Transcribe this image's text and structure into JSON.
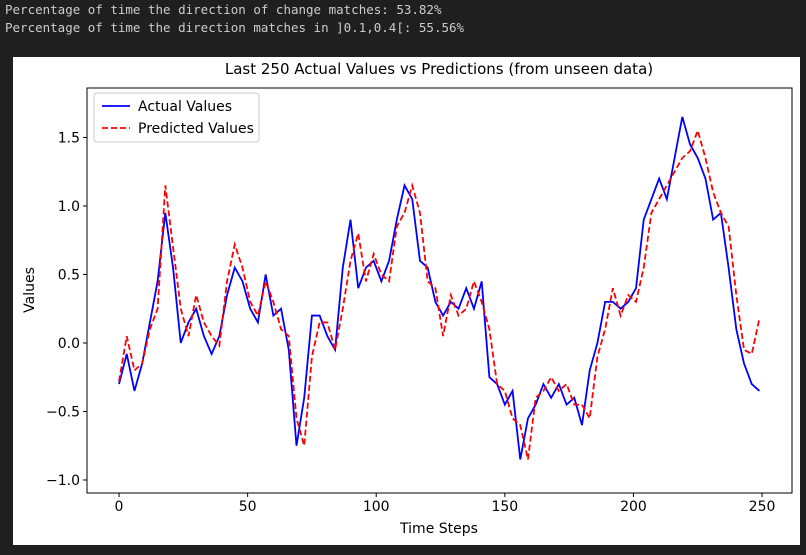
{
  "console": [
    "Percentage of time the direction of change matches: 53.82%",
    "Percentage of time the direction matches in ]0.1,0.4[: 55.56%"
  ],
  "chart_data": {
    "type": "line",
    "title": "Last 250 Actual Values vs Predictions (from unseen data)",
    "x_label": "Time Steps",
    "y_label": "Values",
    "x": [
      0,
      3,
      6,
      9,
      12,
      15,
      18,
      21,
      24,
      27,
      30,
      33,
      36,
      39,
      42,
      45,
      48,
      51,
      54,
      57,
      60,
      63,
      66,
      69,
      72,
      75,
      78,
      81,
      84,
      87,
      90,
      93,
      96,
      99,
      102,
      105,
      108,
      111,
      114,
      117,
      120,
      123,
      126,
      129,
      132,
      135,
      138,
      141,
      144,
      147,
      150,
      153,
      156,
      159,
      162,
      165,
      168,
      171,
      174,
      177,
      180,
      183,
      186,
      189,
      192,
      195,
      198,
      201,
      204,
      207,
      210,
      213,
      216,
      219,
      222,
      225,
      228,
      231,
      234,
      237,
      240,
      243,
      246,
      249
    ],
    "series": [
      {
        "name": "Actual Values",
        "color": "#0000ff",
        "dash": false,
        "values": [
          -0.3,
          -0.08,
          -0.35,
          -0.15,
          0.15,
          0.45,
          0.95,
          0.55,
          0.0,
          0.15,
          0.25,
          0.05,
          -0.08,
          0.05,
          0.35,
          0.55,
          0.45,
          0.25,
          0.15,
          0.5,
          0.2,
          0.25,
          -0.05,
          -0.75,
          -0.4,
          0.2,
          0.2,
          0.05,
          -0.05,
          0.55,
          0.9,
          0.4,
          0.55,
          0.6,
          0.45,
          0.6,
          0.9,
          1.15,
          1.05,
          0.6,
          0.55,
          0.3,
          0.2,
          0.3,
          0.25,
          0.4,
          0.25,
          0.45,
          -0.25,
          -0.3,
          -0.45,
          -0.35,
          -0.85,
          -0.55,
          -0.45,
          -0.3,
          -0.4,
          -0.3,
          -0.45,
          -0.4,
          -0.6,
          -0.2,
          0.0,
          0.3,
          0.3,
          0.25,
          0.3,
          0.4,
          0.9,
          1.05,
          1.2,
          1.05,
          1.35,
          1.65,
          1.45,
          1.35,
          1.2,
          0.9,
          0.95,
          0.55,
          0.1,
          -0.15,
          -0.3,
          -0.35
        ]
      },
      {
        "name": "Predicted Values",
        "color": "#ff0000",
        "dash": true,
        "values": [
          -0.28,
          0.05,
          -0.2,
          -0.15,
          0.1,
          0.25,
          1.15,
          0.7,
          0.25,
          0.05,
          0.35,
          0.15,
          0.05,
          -0.02,
          0.45,
          0.72,
          0.55,
          0.3,
          0.2,
          0.45,
          0.3,
          0.1,
          0.05,
          -0.55,
          -0.75,
          -0.1,
          0.15,
          0.15,
          -0.05,
          0.25,
          0.6,
          0.8,
          0.45,
          0.65,
          0.5,
          0.45,
          0.85,
          0.95,
          1.15,
          0.95,
          0.45,
          0.4,
          0.05,
          0.35,
          0.2,
          0.25,
          0.45,
          0.3,
          0.1,
          -0.3,
          -0.35,
          -0.55,
          -0.6,
          -0.85,
          -0.4,
          -0.35,
          -0.25,
          -0.35,
          -0.3,
          -0.45,
          -0.45,
          -0.55,
          -0.1,
          0.1,
          0.4,
          0.2,
          0.35,
          0.3,
          0.55,
          0.95,
          1.05,
          1.15,
          1.25,
          1.35,
          1.4,
          1.55,
          1.35,
          1.1,
          0.95,
          0.85,
          0.35,
          -0.05,
          -0.08,
          0.18
        ]
      }
    ],
    "xlim": [
      -12.45,
      261.65
    ],
    "ylim": [
      -1.095,
      1.861
    ],
    "xticks": [
      0,
      50,
      100,
      150,
      200,
      250
    ],
    "yticks": [
      {
        "value": -1.0,
        "label": "−1.0"
      },
      {
        "value": -0.5,
        "label": "−0.5"
      },
      {
        "value": 0.0,
        "label": "0.0"
      },
      {
        "value": 0.5,
        "label": "0.5"
      },
      {
        "value": 1.0,
        "label": "1.0"
      },
      {
        "value": 1.5,
        "label": "1.5"
      }
    ],
    "legend": "upper left",
    "grid": false
  }
}
